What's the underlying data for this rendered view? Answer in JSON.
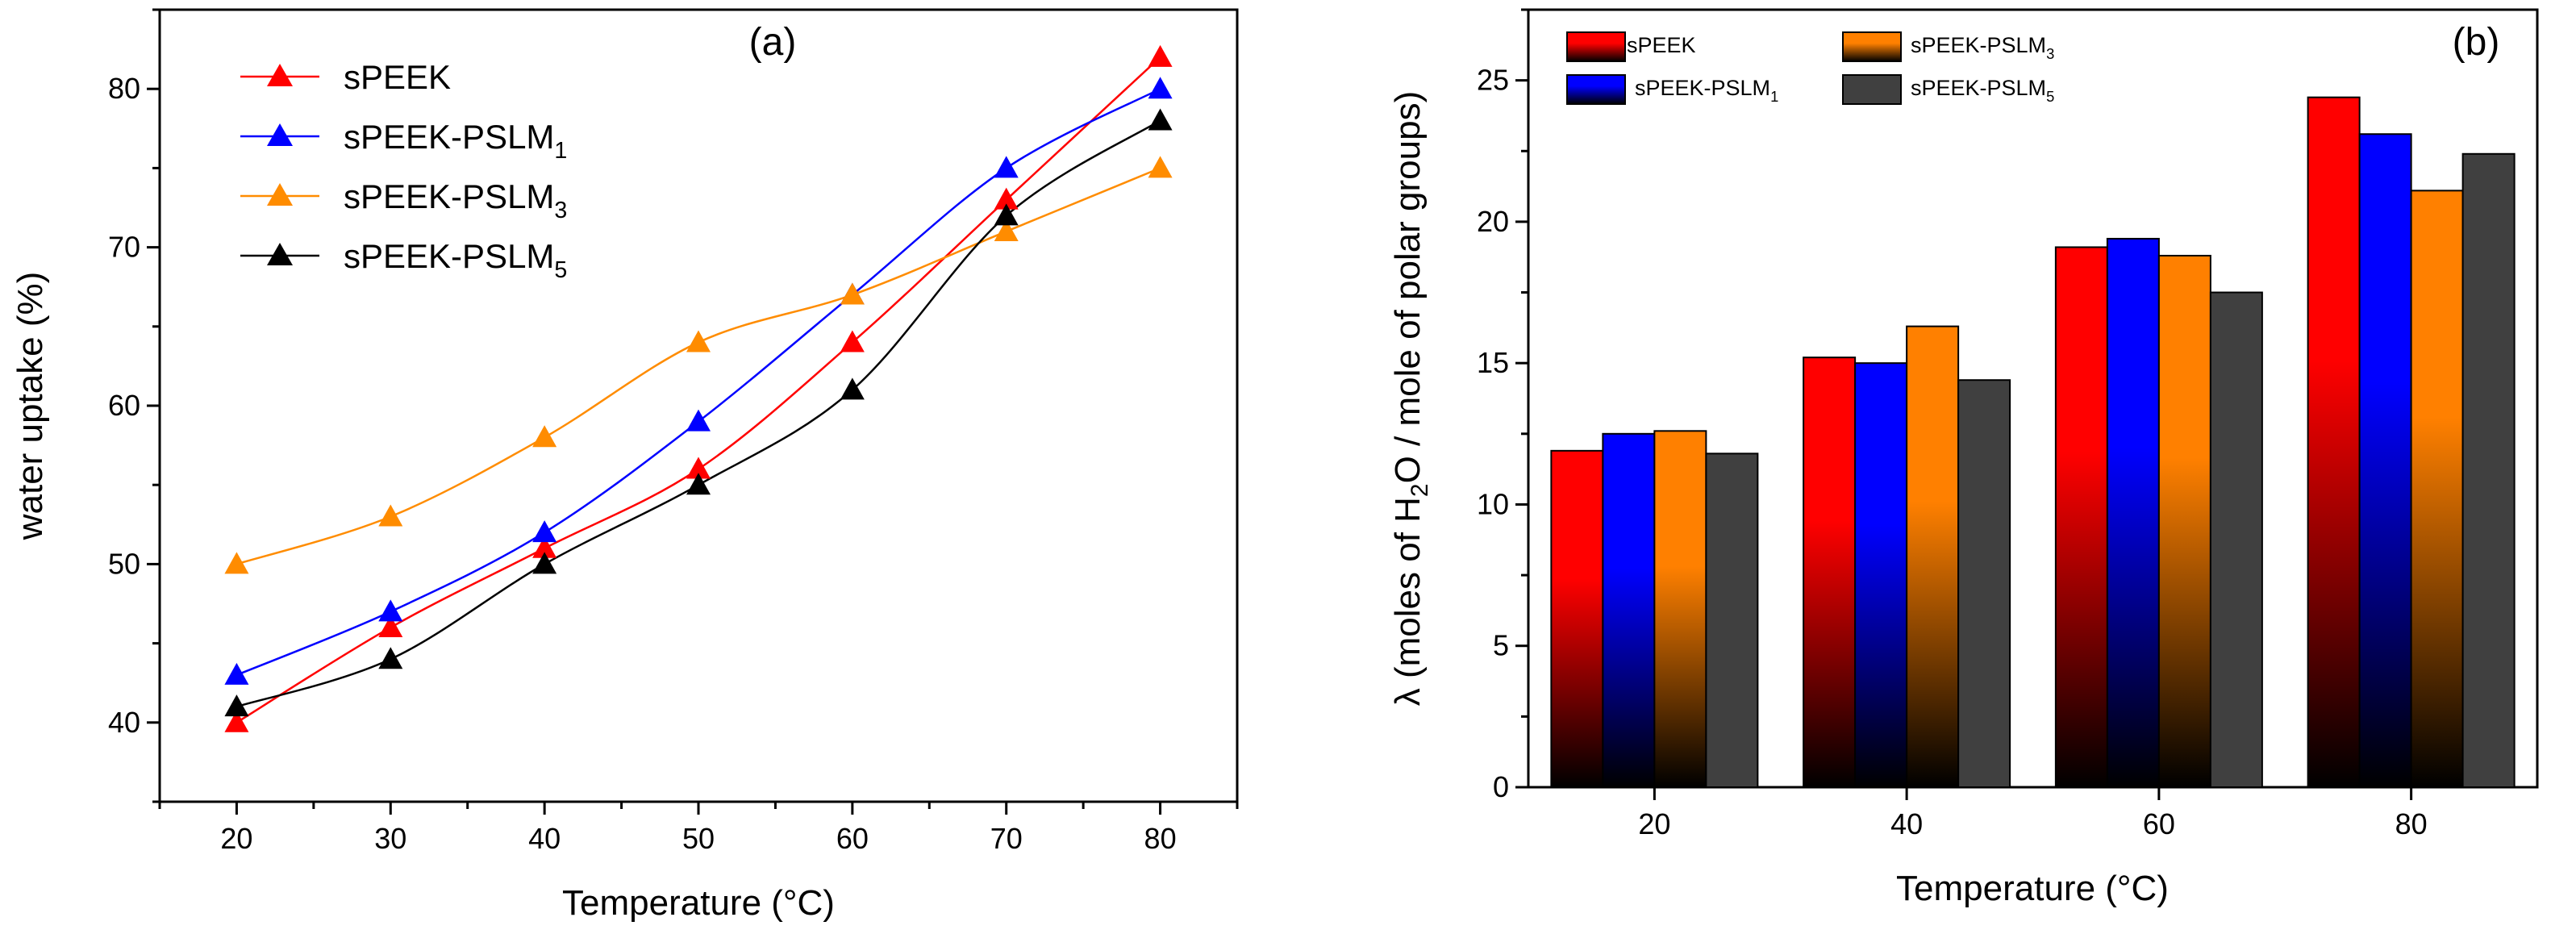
{
  "chart_data": [
    {
      "type": "line",
      "panel": "(a)",
      "xlabel": "Temperature (°C)",
      "ylabel": "water uptake (%)",
      "x": [
        20,
        30,
        40,
        50,
        60,
        70,
        80
      ],
      "xlim": [
        15,
        85
      ],
      "ylim": [
        35,
        85
      ],
      "xticks": [
        20,
        30,
        40,
        50,
        60,
        70,
        80
      ],
      "yticks": [
        40,
        50,
        60,
        70,
        80
      ],
      "legend_position": "top-left",
      "series": [
        {
          "name": "sPEEK",
          "sub": "",
          "color": "#ff0000",
          "values": [
            40,
            46,
            51,
            56,
            64,
            73,
            82
          ]
        },
        {
          "name": "sPEEK-PSLM",
          "sub": "1",
          "color": "#0000ff",
          "values": [
            43,
            47,
            52,
            59,
            67,
            75,
            80
          ]
        },
        {
          "name": "sPEEK-PSLM",
          "sub": "3",
          "color": "#ff8c00",
          "values": [
            50,
            53,
            58,
            64,
            67,
            71,
            75
          ]
        },
        {
          "name": "sPEEK-PSLM",
          "sub": "5",
          "color": "#000000",
          "values": [
            41,
            44,
            50,
            55,
            61,
            72,
            78
          ]
        }
      ]
    },
    {
      "type": "bar",
      "panel": "(b)",
      "xlabel": "Temperature (°C)",
      "ylabel_parts": [
        "λ (moles of H",
        "2",
        "O / mole of polar groups)"
      ],
      "categories": [
        "20",
        "40",
        "60",
        "80"
      ],
      "ylim": [
        0,
        27.5
      ],
      "yticks": [
        0,
        5,
        10,
        15,
        20,
        25
      ],
      "legend_position": "top-left",
      "series": [
        {
          "name": "sPEEK",
          "sub": "",
          "color": "#ff0000",
          "values": [
            11.9,
            15.2,
            19.1,
            24.4
          ]
        },
        {
          "name": "sPEEK-PSLM",
          "sub": "1",
          "color": "#0000ff",
          "values": [
            12.5,
            15.0,
            19.4,
            23.1
          ]
        },
        {
          "name": "sPEEK-PSLM",
          "sub": "3",
          "color": "#ff8000",
          "values": [
            12.6,
            16.3,
            18.8,
            21.1
          ]
        },
        {
          "name": "sPEEK-PSLM",
          "sub": "5",
          "color": "#404040",
          "values": [
            11.8,
            14.4,
            17.5,
            22.4
          ]
        }
      ]
    }
  ]
}
